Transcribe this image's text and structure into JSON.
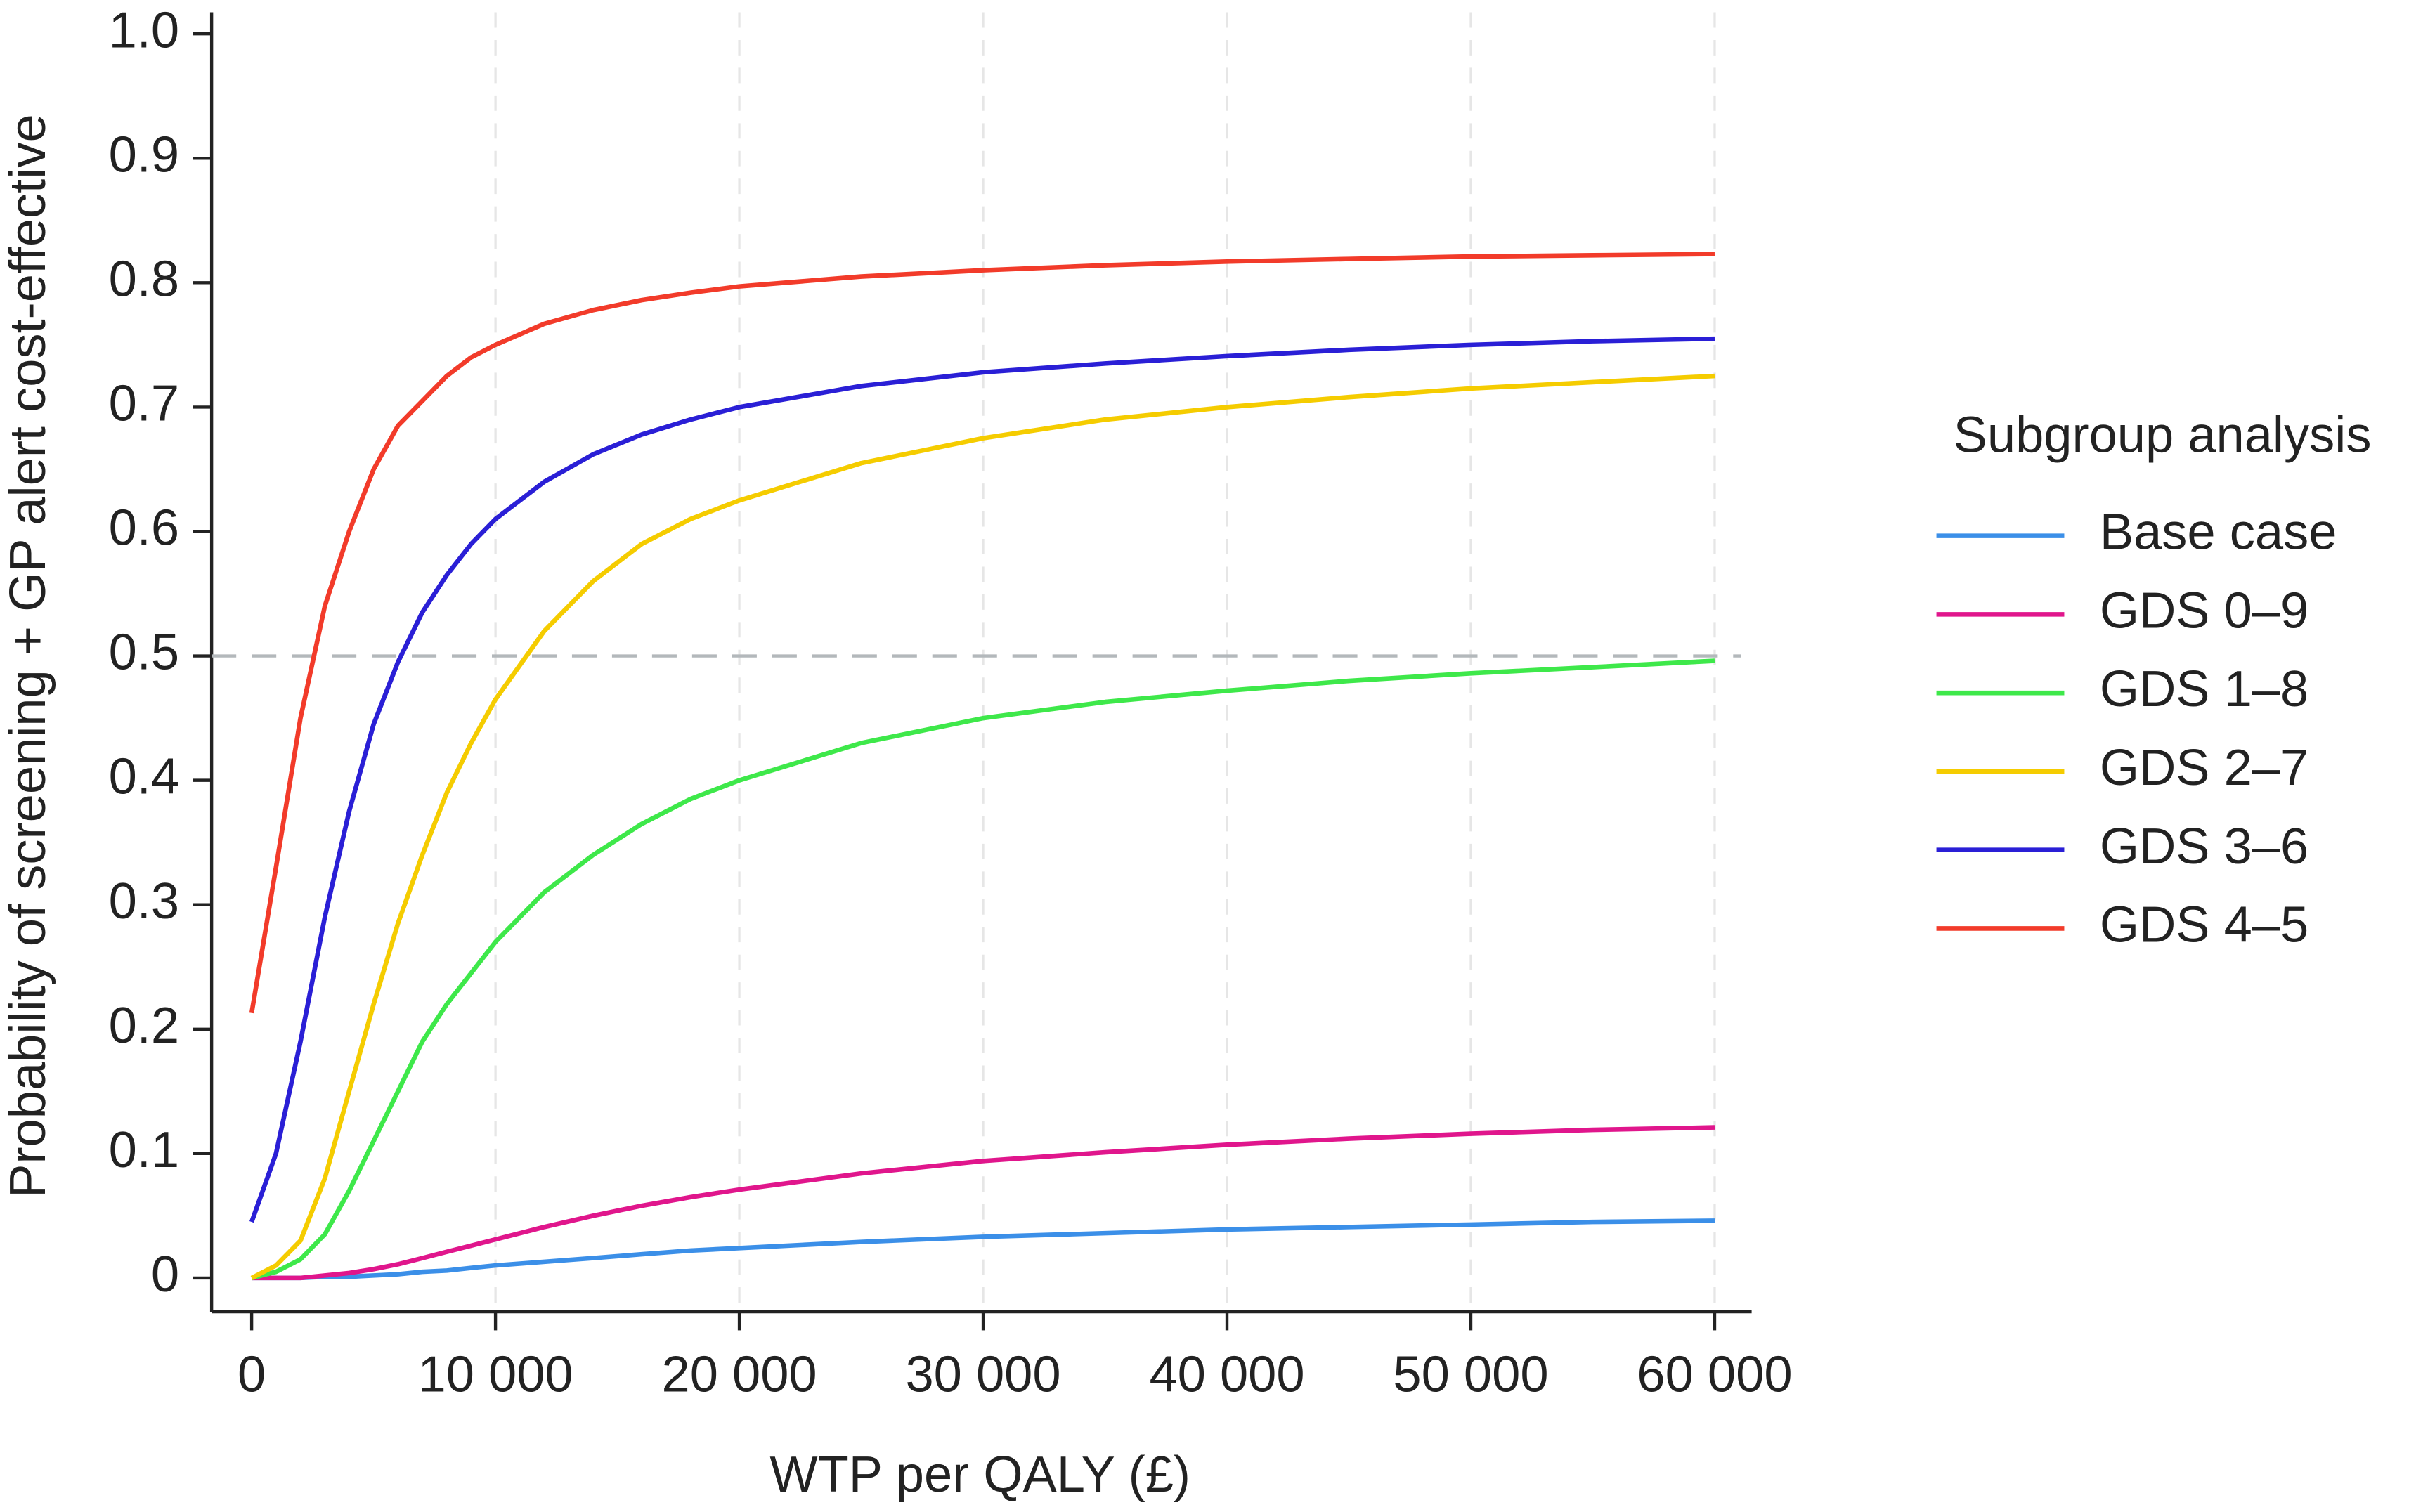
{
  "chart_data": {
    "type": "line",
    "xlabel": "WTP per QALY (£)",
    "ylabel": "Probability of screening + GP alert cost-effective",
    "legend_title": "Subgroup analysis",
    "legend_position": "right",
    "x": [
      0,
      1000,
      2000,
      3000,
      4000,
      5000,
      6000,
      7000,
      8000,
      9000,
      10000,
      12000,
      14000,
      16000,
      18000,
      20000,
      25000,
      30000,
      35000,
      40000,
      45000,
      50000,
      55000,
      60000
    ],
    "series": [
      {
        "name": "Base case",
        "color": "#3b8fe8",
        "values": [
          0,
          0,
          0,
          0.001,
          0.001,
          0.002,
          0.003,
          0.005,
          0.006,
          0.008,
          0.01,
          0.013,
          0.016,
          0.019,
          0.022,
          0.024,
          0.029,
          0.033,
          0.036,
          0.039,
          0.041,
          0.043,
          0.045,
          0.046
        ]
      },
      {
        "name": "GDS 0–9",
        "color": "#e0168c",
        "values": [
          0,
          0,
          0,
          0.002,
          0.004,
          0.007,
          0.011,
          0.016,
          0.021,
          0.026,
          0.031,
          0.041,
          0.05,
          0.058,
          0.065,
          0.071,
          0.084,
          0.094,
          0.101,
          0.107,
          0.112,
          0.116,
          0.119,
          0.121
        ]
      },
      {
        "name": "GDS 1–8",
        "color": "#3ee84a",
        "values": [
          0,
          0.005,
          0.015,
          0.035,
          0.07,
          0.11,
          0.15,
          0.19,
          0.22,
          0.245,
          0.27,
          0.31,
          0.34,
          0.365,
          0.385,
          0.4,
          0.43,
          0.45,
          0.463,
          0.472,
          0.48,
          0.486,
          0.491,
          0.496
        ]
      },
      {
        "name": "GDS 2–7",
        "color": "#f5cc00",
        "values": [
          0,
          0.01,
          0.03,
          0.08,
          0.15,
          0.22,
          0.285,
          0.34,
          0.39,
          0.43,
          0.465,
          0.52,
          0.56,
          0.59,
          0.61,
          0.625,
          0.655,
          0.675,
          0.69,
          0.7,
          0.708,
          0.715,
          0.72,
          0.725
        ]
      },
      {
        "name": "GDS 3–6",
        "color": "#2a1fd6",
        "values": [
          0.045,
          0.1,
          0.19,
          0.29,
          0.375,
          0.445,
          0.495,
          0.535,
          0.565,
          0.59,
          0.61,
          0.64,
          0.662,
          0.678,
          0.69,
          0.7,
          0.717,
          0.728,
          0.735,
          0.741,
          0.746,
          0.75,
          0.753,
          0.755
        ]
      },
      {
        "name": "GDS 4–5",
        "color": "#f23b2a",
        "values": [
          0.213,
          0.33,
          0.45,
          0.54,
          0.6,
          0.65,
          0.685,
          0.705,
          0.725,
          0.74,
          0.75,
          0.767,
          0.778,
          0.786,
          0.792,
          0.797,
          0.805,
          0.81,
          0.814,
          0.817,
          0.819,
          0.821,
          0.822,
          0.823
        ]
      }
    ],
    "xlim": [
      0,
      60000
    ],
    "ylim": [
      0,
      1
    ],
    "xticks": [
      0,
      {
        "value": 10000,
        "label": "10 000"
      },
      {
        "value": 20000,
        "label": "20 000"
      },
      {
        "value": 30000,
        "label": "30 000"
      },
      {
        "value": 40000,
        "label": "40 000"
      },
      {
        "value": 50000,
        "label": "50 000"
      },
      {
        "value": 60000,
        "label": "60 000"
      }
    ],
    "yticks": [
      0,
      0.1,
      0.2,
      0.3,
      0.4,
      0.5,
      0.6,
      0.7,
      0.8,
      0.9,
      {
        "value": 1,
        "label": "1.0"
      }
    ],
    "xgrid": true,
    "reference_line": 0.5
  }
}
